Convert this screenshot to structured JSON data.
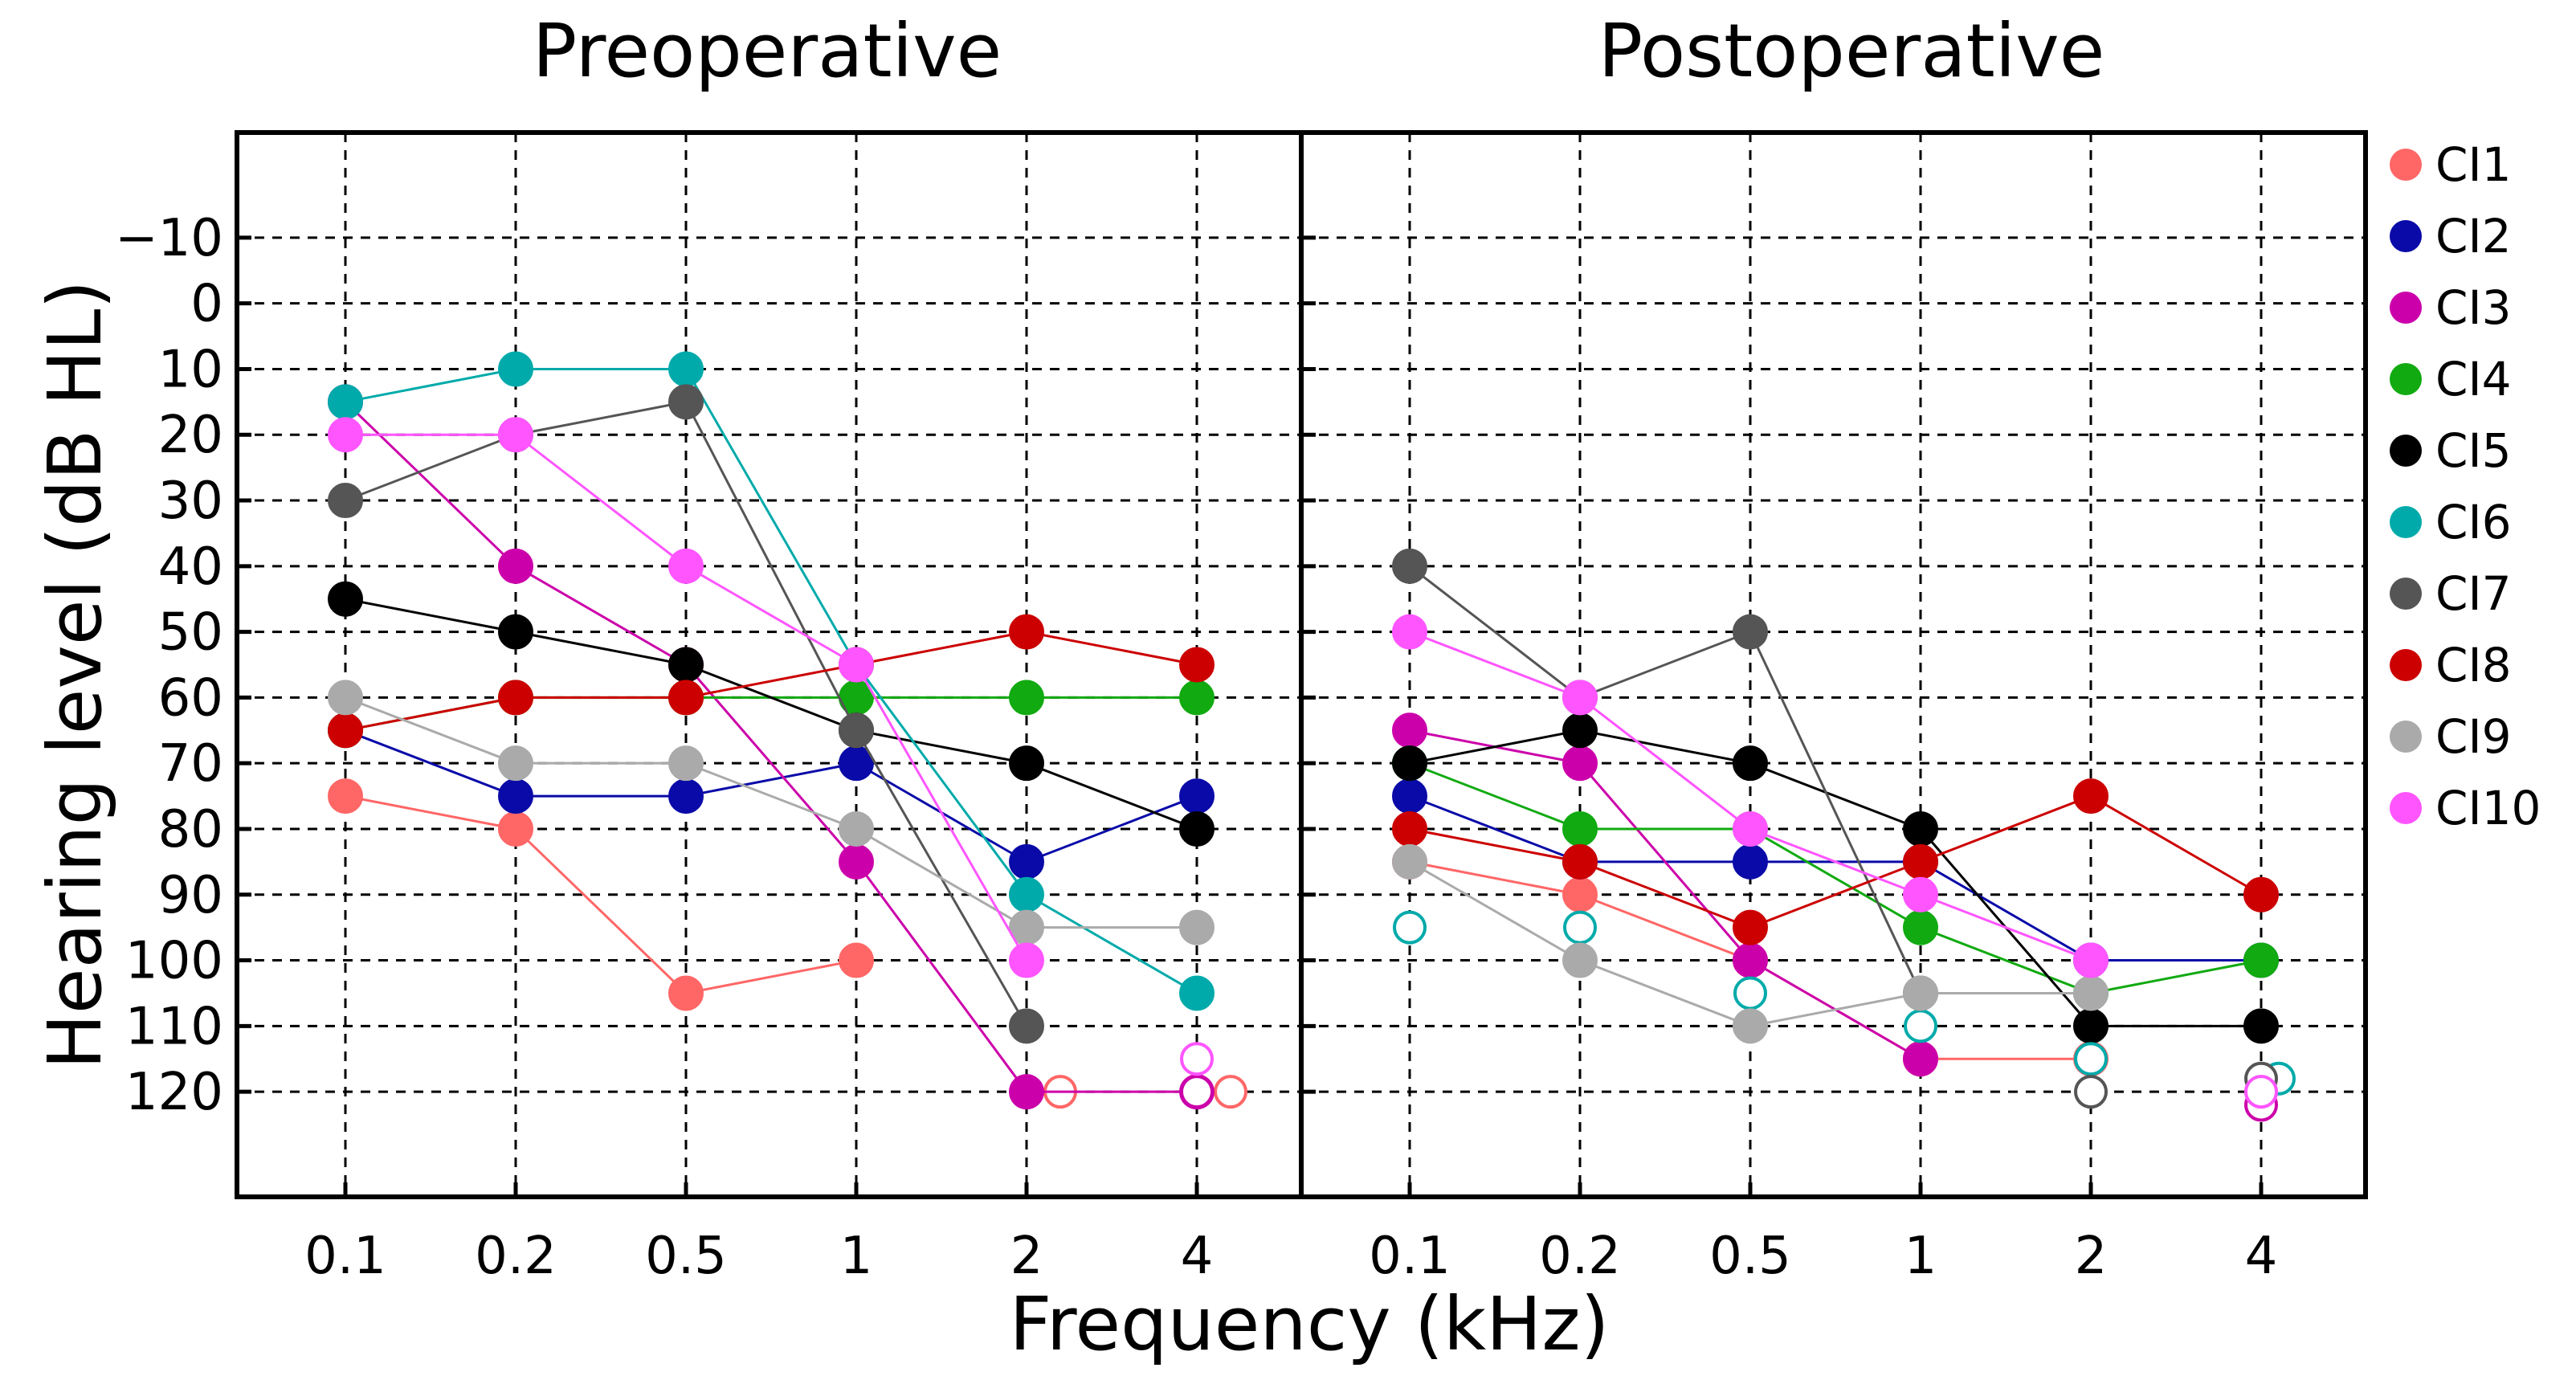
{
  "chart_data": {
    "type": "line",
    "ylabel": "Hearing level (dB HL)",
    "xlabel": "Frequency (kHz)",
    "x_categories": [
      "0.1",
      "0.2",
      "0.5",
      "1",
      "2",
      "4"
    ],
    "y_ticks": [
      -10,
      0,
      10,
      20,
      30,
      40,
      50,
      60,
      70,
      80,
      90,
      100,
      110,
      120
    ],
    "y_tick_labels": [
      "−10",
      "0",
      "10",
      "20",
      "30",
      "40",
      "50",
      "60",
      "70",
      "80",
      "90",
      "100",
      "110",
      "120"
    ],
    "ylim": [
      -26,
      136
    ],
    "y_inverted": true,
    "grid": true,
    "legend_position": "right",
    "open_marker_meaning": "no response at maximum output (shown as open circle)",
    "series": [
      {
        "name": "CI1",
        "color": "#ff6666"
      },
      {
        "name": "CI2",
        "color": "#0a0aa8"
      },
      {
        "name": "CI3",
        "color": "#cc00aa"
      },
      {
        "name": "CI4",
        "color": "#11aa11"
      },
      {
        "name": "CI5",
        "color": "#000000"
      },
      {
        "name": "CI6",
        "color": "#00aaaa"
      },
      {
        "name": "CI7",
        "color": "#555555"
      },
      {
        "name": "CI8",
        "color": "#cc0000"
      },
      {
        "name": "CI9",
        "color": "#aaaaaa"
      },
      {
        "name": "CI10",
        "color": "#ff55ff"
      }
    ],
    "panels": [
      {
        "title": "Preoperative",
        "series": [
          {
            "name": "CI1",
            "values": [
              75,
              80,
              105,
              100,
              null,
              null
            ],
            "open": [
              null,
              null,
              null,
              null,
              120,
              120
            ]
          },
          {
            "name": "CI2",
            "values": [
              65,
              75,
              75,
              70,
              85,
              75
            ],
            "open": [
              null,
              null,
              null,
              null,
              null,
              null
            ]
          },
          {
            "name": "CI3",
            "values": [
              15,
              40,
              55,
              85,
              120,
              120
            ],
            "open": [
              null,
              null,
              null,
              null,
              null,
              120
            ]
          },
          {
            "name": "CI4",
            "values": [
              65,
              60,
              60,
              60,
              60,
              60
            ],
            "open": [
              null,
              null,
              null,
              null,
              null,
              null
            ]
          },
          {
            "name": "CI5",
            "values": [
              45,
              50,
              55,
              65,
              70,
              80
            ],
            "open": [
              null,
              null,
              null,
              null,
              null,
              null
            ]
          },
          {
            "name": "CI6",
            "values": [
              15,
              10,
              10,
              55,
              90,
              105
            ],
            "open": [
              null,
              null,
              null,
              null,
              null,
              null
            ]
          },
          {
            "name": "CI7",
            "values": [
              30,
              20,
              15,
              65,
              110,
              null
            ],
            "open": [
              null,
              null,
              null,
              null,
              null,
              null
            ]
          },
          {
            "name": "CI8",
            "values": [
              65,
              60,
              60,
              55,
              50,
              55
            ],
            "open": [
              null,
              null,
              null,
              null,
              null,
              null
            ]
          },
          {
            "name": "CI9",
            "values": [
              60,
              70,
              70,
              80,
              95,
              95
            ],
            "open": [
              null,
              null,
              null,
              null,
              null,
              null
            ]
          },
          {
            "name": "CI10",
            "values": [
              20,
              20,
              40,
              55,
              100,
              null
            ],
            "open": [
              null,
              null,
              null,
              null,
              null,
              115
            ]
          }
        ]
      },
      {
        "title": "Postoperative",
        "series": [
          {
            "name": "CI1",
            "values": [
              85,
              90,
              100,
              115,
              115,
              null
            ],
            "open": [
              null,
              null,
              null,
              null,
              null,
              null
            ]
          },
          {
            "name": "CI2",
            "values": [
              75,
              85,
              85,
              85,
              100,
              100
            ],
            "open": [
              null,
              null,
              null,
              null,
              null,
              null
            ]
          },
          {
            "name": "CI3",
            "values": [
              65,
              70,
              100,
              115,
              null,
              null
            ],
            "open": [
              null,
              null,
              null,
              null,
              null,
              122
            ]
          },
          {
            "name": "CI4",
            "values": [
              70,
              80,
              80,
              95,
              105,
              100
            ],
            "open": [
              null,
              null,
              null,
              null,
              null,
              null
            ]
          },
          {
            "name": "CI5",
            "values": [
              70,
              65,
              70,
              80,
              110,
              110
            ],
            "open": [
              null,
              null,
              null,
              null,
              null,
              null
            ]
          },
          {
            "name": "CI6",
            "values": [
              null,
              null,
              null,
              null,
              null,
              null
            ],
            "open": [
              95,
              95,
              105,
              110,
              115,
              118
            ]
          },
          {
            "name": "CI7",
            "values": [
              40,
              60,
              50,
              105,
              null,
              null
            ],
            "open": [
              null,
              null,
              null,
              null,
              120,
              118
            ]
          },
          {
            "name": "CI8",
            "values": [
              80,
              85,
              95,
              85,
              75,
              90
            ],
            "open": [
              null,
              null,
              null,
              null,
              null,
              null
            ]
          },
          {
            "name": "CI9",
            "values": [
              85,
              100,
              110,
              105,
              105,
              null
            ],
            "open": [
              null,
              null,
              null,
              null,
              null,
              120
            ]
          },
          {
            "name": "CI10",
            "values": [
              50,
              60,
              80,
              90,
              100,
              null
            ],
            "open": [
              null,
              null,
              null,
              null,
              null,
              120
            ]
          }
        ]
      }
    ]
  }
}
